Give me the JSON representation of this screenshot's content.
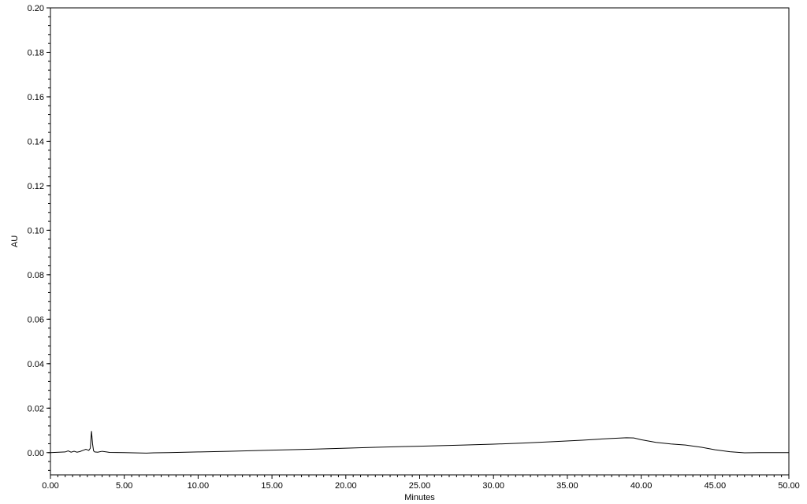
{
  "chart_data": {
    "type": "line",
    "xlabel": "Minutes",
    "ylabel": "AU",
    "xlim": [
      0,
      50
    ],
    "ylim": [
      -0.01,
      0.2
    ],
    "grid": false,
    "x_ticks": [
      "0.00",
      "5.00",
      "10.00",
      "15.00",
      "20.00",
      "25.00",
      "30.00",
      "35.00",
      "40.00",
      "45.00",
      "50.00"
    ],
    "y_ticks": [
      "0.00",
      "0.02",
      "0.04",
      "0.06",
      "0.08",
      "0.10",
      "0.12",
      "0.14",
      "0.16",
      "0.18",
      "0.20"
    ],
    "series": [
      {
        "x": [
          0,
          1.0,
          1.2,
          1.4,
          1.6,
          1.8,
          2.0,
          2.2,
          2.4,
          2.6,
          2.7,
          2.78,
          2.85,
          2.92,
          3.0,
          3.2,
          3.5,
          3.8,
          4.0,
          5.0,
          6.5,
          7.0,
          8.0,
          10.0,
          12.0,
          15.0,
          18.0,
          20.0,
          22.0,
          25.0,
          28.0,
          30.0,
          32.0,
          34.0,
          36.0,
          37.0,
          38.0,
          39.0,
          39.5,
          40.0,
          41.0,
          42.0,
          43.0,
          44.0,
          45.0,
          46.0,
          47.0,
          48.0,
          48.5,
          50.0
        ],
        "y": [
          0.0,
          0.0003,
          0.0008,
          0.0002,
          0.0006,
          0.0002,
          0.0005,
          0.001,
          0.0015,
          0.001,
          0.002,
          0.0097,
          0.004,
          0.0008,
          0.0003,
          0.0002,
          0.0006,
          0.0003,
          0.0001,
          0.0,
          -0.0002,
          -0.0001,
          0.0,
          0.0003,
          0.0006,
          0.0011,
          0.0016,
          0.002,
          0.0024,
          0.0029,
          0.0034,
          0.0038,
          0.0043,
          0.0049,
          0.0056,
          0.006,
          0.0064,
          0.0067,
          0.0066,
          0.0058,
          0.0046,
          0.0039,
          0.0034,
          0.0025,
          0.0013,
          0.0004,
          -0.0001,
          0.0,
          0.0,
          0.0
        ]
      }
    ]
  }
}
